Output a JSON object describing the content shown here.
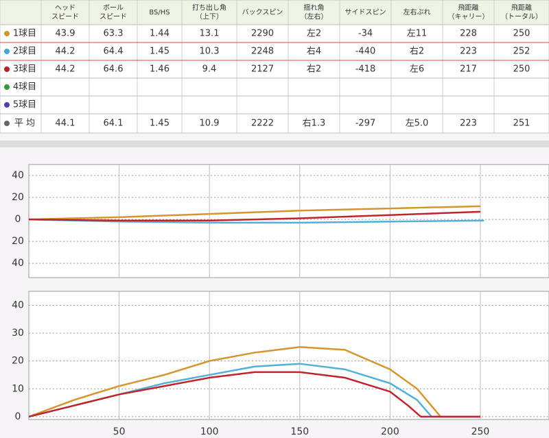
{
  "table": {
    "headers": [
      [
        "ヘッド",
        "スピード"
      ],
      [
        "ボール",
        "スピード"
      ],
      [
        "BS/HS"
      ],
      [
        "打ち出し角",
        "（上下）"
      ],
      [
        "バックスピン"
      ],
      [
        "揺れ角",
        "（左右）"
      ],
      [
        "サイドスピン"
      ],
      [
        "左右ぶれ"
      ],
      [
        "飛距離",
        "（キャリー）"
      ],
      [
        "飛距離",
        "（トータル）"
      ]
    ],
    "rows": [
      {
        "label": "1球目",
        "color": "#d4952e",
        "cells": [
          43.9,
          63.3,
          1.44,
          13.1,
          2290,
          "左2",
          -34,
          "左11",
          228,
          250
        ]
      },
      {
        "label": "2球目",
        "color": "#3fa9d6",
        "cells": [
          44.2,
          64.4,
          1.45,
          10.3,
          2248,
          "右4",
          -440,
          "右2",
          223,
          252
        ]
      },
      {
        "label": "3球目",
        "color": "#b8222a",
        "cells": [
          44.2,
          64.6,
          1.46,
          9.4,
          2127,
          "右2",
          -418,
          "左6",
          217,
          250
        ]
      },
      {
        "label": "4球目",
        "color": "#2e9a3a",
        "cells": [
          null,
          null,
          null,
          null,
          null,
          null,
          null,
          null,
          null,
          null
        ]
      },
      {
        "label": "5球目",
        "color": "#4a3fb0",
        "cells": [
          null,
          null,
          null,
          null,
          null,
          null,
          null,
          null,
          null,
          null
        ]
      },
      {
        "label": "平 均",
        "color": "#666666",
        "cells": [
          44.1,
          64.1,
          1.45,
          10.9,
          2222,
          "右1.3",
          -297,
          "左5.0",
          223,
          251
        ]
      }
    ]
  },
  "chart_data": [
    {
      "type": "line",
      "xlim": [
        0,
        288
      ],
      "ylim": [
        -53,
        50
      ],
      "xticks": [
        50,
        100,
        150,
        200,
        250
      ],
      "yticks": [
        40,
        20,
        0,
        {
          "value": -20,
          "label": "20"
        },
        {
          "value": -40,
          "label": "40"
        }
      ],
      "grid": true,
      "series": [
        {
          "color": "#d4952e",
          "x": [
            0,
            50,
            100,
            150,
            200,
            250
          ],
          "values": [
            0,
            2,
            5,
            8,
            10,
            12
          ]
        },
        {
          "color": "#4fb0d8",
          "x": [
            0,
            50,
            100,
            150,
            200,
            252
          ],
          "values": [
            0,
            -2,
            -3,
            -3,
            -2,
            -1
          ]
        },
        {
          "color": "#c0232c",
          "x": [
            0,
            50,
            100,
            150,
            200,
            250
          ],
          "values": [
            0,
            -1,
            -1,
            1,
            4,
            7
          ]
        }
      ]
    },
    {
      "type": "line",
      "xlim": [
        0,
        288
      ],
      "ylim": [
        -1,
        45
      ],
      "xticks": [
        50,
        100,
        150,
        200,
        250
      ],
      "yticks": [
        0,
        10,
        20,
        30,
        40
      ],
      "grid": true,
      "series": [
        {
          "color": "#d4952e",
          "x": [
            0,
            25,
            50,
            75,
            100,
            125,
            150,
            175,
            200,
            215,
            228,
            250
          ],
          "values": [
            0,
            6,
            11,
            15,
            20,
            23,
            25,
            24,
            17,
            10,
            0,
            0
          ]
        },
        {
          "color": "#4fb0d8",
          "x": [
            0,
            25,
            50,
            75,
            100,
            125,
            150,
            175,
            200,
            215,
            223,
            250
          ],
          "values": [
            0,
            4,
            8,
            12,
            15,
            18,
            19,
            17,
            12,
            6,
            0,
            0
          ]
        },
        {
          "color": "#c0232c",
          "x": [
            0,
            25,
            50,
            75,
            100,
            125,
            150,
            175,
            200,
            210,
            217,
            250
          ],
          "values": [
            0,
            4,
            8,
            11,
            14,
            16,
            16,
            14,
            9,
            4,
            0,
            0
          ]
        }
      ]
    }
  ]
}
